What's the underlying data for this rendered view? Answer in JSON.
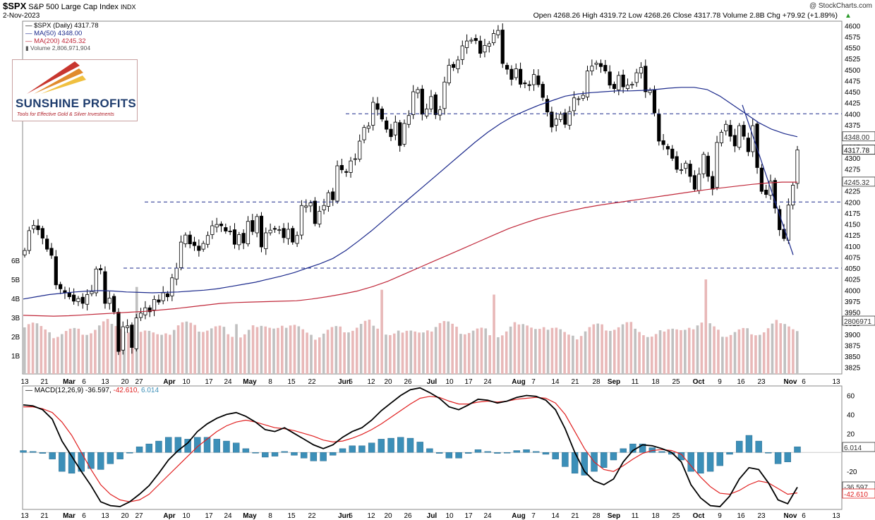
{
  "header": {
    "symbol": "$SPX",
    "name": "S&P 500 Large Cap Index",
    "exchange": "INDX",
    "date": "2-Nov-2023",
    "watermark": "@ StockCharts.com",
    "ohlc": "Open 4268.26  High 4319.72  Low 4268.26  Close 4317.78  Volume 2.8B  Chg +79.92 (+1.89%)",
    "arrow": "▲"
  },
  "legend": {
    "price": "$SPX (Daily) 4317.78",
    "ma50": "MA(50) 4348.00",
    "ma200": "MA(200) 4245.32",
    "volume": "Volume 2,806,971,904",
    "macd_label": "MACD(12,26,9)",
    "macd_value": "-36.597,",
    "signal_value": "-42.610,",
    "hist_value": "6.014"
  },
  "logo": {
    "brand": "SUNSHINE PROFITS",
    "tagline": "Tools for Effective Gold & Silver Investments"
  },
  "colors": {
    "ma50": "#1c2a8c",
    "ma200": "#c0283a",
    "vol_up": "#e8b8b8",
    "vol_dn": "#c0c0c0",
    "hist": "#3c8fb8",
    "signal": "#e02020",
    "macd": "#000000",
    "hline": "#1c2a8c"
  },
  "chart_data": [
    {
      "type": "candlestick",
      "title": "$SPX (Daily)",
      "y_ticks": [
        3825,
        3850,
        3875,
        3900,
        3925,
        3950,
        3975,
        4000,
        4025,
        4050,
        4075,
        4100,
        4125,
        4150,
        4175,
        4200,
        4225,
        4250,
        4275,
        4300,
        4325,
        4350,
        4375,
        4400,
        4425,
        4450,
        4475,
        4500,
        4525,
        4550,
        4575,
        4600
      ],
      "ylim": [
        3810,
        4610
      ],
      "x_ticks": [
        "13",
        "21",
        "Mar",
        "6",
        "13",
        "20",
        "27",
        "Apr",
        "10",
        "17",
        "24",
        "May",
        "8",
        "15",
        "22",
        "Jun",
        "5",
        "12",
        "20",
        "26",
        "Jul",
        "10",
        "17",
        "24",
        "Aug",
        "7",
        "14",
        "21",
        "28",
        "Sep",
        "11",
        "18",
        "25",
        "Oct",
        "9",
        "16",
        "23",
        "Nov",
        "6",
        "13"
      ],
      "close_path": [
        4090,
        4135,
        4147,
        4137,
        4118,
        4093,
        4079,
        4012,
        4003,
        3994,
        3985,
        3975,
        3981,
        3970,
        3990,
        3997,
        4048,
        4046,
        3970,
        3982,
        3951,
        3861,
        3917,
        3919,
        3870,
        3937,
        3948,
        3960,
        3951,
        3979,
        3973,
        3994,
        3985,
        4028,
        4050,
        4109,
        4125,
        4105,
        4101,
        4090,
        4106,
        4124,
        4146,
        4149,
        4146,
        4134,
        4133,
        4104,
        4126,
        4107,
        4156,
        4133,
        4167,
        4098,
        4130,
        4136,
        4138,
        4137,
        4119,
        4138,
        4109,
        4124,
        4192,
        4191,
        4198,
        4151,
        4179,
        4192,
        4221,
        4205,
        4282,
        4273,
        4267,
        4293,
        4298,
        4338,
        4369,
        4372,
        4426,
        4410,
        4388,
        4365,
        4348,
        4381,
        4328,
        4378,
        4396,
        4450,
        4455,
        4399,
        4411,
        4439,
        4398,
        4409,
        4472,
        4510,
        4505,
        4522,
        4554,
        4565,
        4567,
        4566,
        4537,
        4555,
        4559,
        4582,
        4589,
        4514,
        4501,
        4478,
        4502,
        4467,
        4468,
        4464,
        4489,
        4466,
        4437,
        4404,
        4370,
        4388,
        4399,
        4376,
        4405,
        4436,
        4434,
        4442,
        4497,
        4508,
        4515,
        4507,
        4497,
        4465,
        4457,
        4487,
        4461,
        4465,
        4467,
        4493,
        4505,
        4450,
        4453,
        4402,
        4338,
        4330,
        4320,
        4299,
        4274,
        4273,
        4288,
        4258,
        4229,
        4263,
        4308,
        4258,
        4229,
        4335,
        4358,
        4376,
        4349,
        4327,
        4373,
        4349,
        4314,
        4373,
        4278,
        4224,
        4217,
        4247,
        4186,
        4137,
        4117,
        4193,
        4238,
        4318
      ],
      "ma50_path": [
        3980,
        3985,
        3990,
        3993,
        3996,
        3998,
        3999,
        3998,
        3996,
        3995,
        3994,
        3995,
        3996,
        3998,
        4000,
        4003,
        4008,
        4013,
        4018,
        4025,
        4032,
        4040,
        4050,
        4060,
        4072,
        4090,
        4112,
        4135,
        4160,
        4185,
        4210,
        4235,
        4260,
        4285,
        4310,
        4335,
        4358,
        4378,
        4395,
        4408,
        4420,
        4430,
        4440,
        4445,
        4448,
        4450,
        4452,
        4452,
        4453,
        4455,
        4458,
        4460,
        4460,
        4455,
        4440,
        4420,
        4400,
        4380,
        4365,
        4355,
        4348
      ],
      "ma200_path": [
        3943,
        3942,
        3941,
        3942,
        3944,
        3946,
        3948,
        3950,
        3952,
        3955,
        3958,
        3962,
        3966,
        3970,
        3972,
        3973,
        3974,
        3975,
        3976,
        3980,
        3985,
        3991,
        3998,
        4008,
        4020,
        4035,
        4050,
        4065,
        4080,
        4095,
        4110,
        4125,
        4140,
        4152,
        4163,
        4172,
        4180,
        4187,
        4193,
        4198,
        4203,
        4208,
        4213,
        4218,
        4223,
        4228,
        4232,
        4236,
        4240,
        4243,
        4245,
        4245
      ],
      "horizontal_levels": [
        4050,
        4200,
        4400
      ],
      "trend_line": [
        [
          4420,
          "Oct 13"
        ],
        [
          4080,
          "Oct 31"
        ]
      ],
      "last_close": 4317.78,
      "ma50_last": 4348.0,
      "ma200_last": 4245.32
    },
    {
      "type": "bar",
      "title": "Volume",
      "y_ticks": [
        "1B",
        "2B",
        "3B",
        "4B",
        "5B",
        "6B"
      ],
      "last_value": "2806971"
    },
    {
      "type": "line",
      "title": "MACD(12,26,9)",
      "y_ticks": [
        60,
        40,
        20,
        -20
      ],
      "ylim": [
        -60,
        70
      ],
      "macd_path": [
        50,
        49,
        45,
        35,
        12,
        -4,
        -20,
        -35,
        -52,
        -56,
        -57,
        -52,
        -44,
        -35,
        -22,
        -8,
        2,
        10,
        22,
        30,
        36,
        40,
        42,
        38,
        32,
        24,
        22,
        26,
        20,
        14,
        8,
        4,
        8,
        16,
        22,
        26,
        34,
        44,
        52,
        60,
        66,
        68,
        63,
        57,
        48,
        45,
        50,
        56,
        55,
        52,
        54,
        58,
        60,
        59,
        55,
        45,
        25,
        0,
        -20,
        -30,
        -34,
        -28,
        -10,
        2,
        8,
        7,
        4,
        0,
        -10,
        -34,
        -48,
        -56,
        -57,
        -46,
        -28,
        -16,
        -18,
        -32,
        -50,
        -54,
        -36.6
      ],
      "signal_path": [
        48,
        48,
        46,
        42,
        32,
        18,
        0,
        -18,
        -34,
        -44,
        -50,
        -52,
        -50,
        -44,
        -34,
        -24,
        -14,
        -4,
        6,
        14,
        22,
        28,
        32,
        34,
        32,
        29,
        26,
        25,
        23,
        20,
        17,
        13,
        11,
        12,
        15,
        19,
        24,
        30,
        37,
        44,
        51,
        57,
        59,
        58,
        54,
        51,
        51,
        53,
        54,
        53,
        54,
        56,
        57,
        58,
        57,
        52,
        40,
        22,
        4,
        -10,
        -18,
        -20,
        -14,
        -7,
        -1,
        2,
        3,
        2,
        -2,
        -14,
        -26,
        -36,
        -43,
        -44,
        -40,
        -34,
        -30,
        -32,
        -38,
        -44,
        -42.6
      ],
      "histogram_last": 6.014,
      "last_macd": -36.597,
      "last_signal": -42.61
    }
  ],
  "axis_labels": {
    "vol_right": "2806971",
    "price_box": "4317.78",
    "ma50_box": "4348.00",
    "ma200_box": "4245.32",
    "macd_box1": "6.014",
    "macd_box2": "-36.597",
    "macd_box3": "-42.610"
  }
}
